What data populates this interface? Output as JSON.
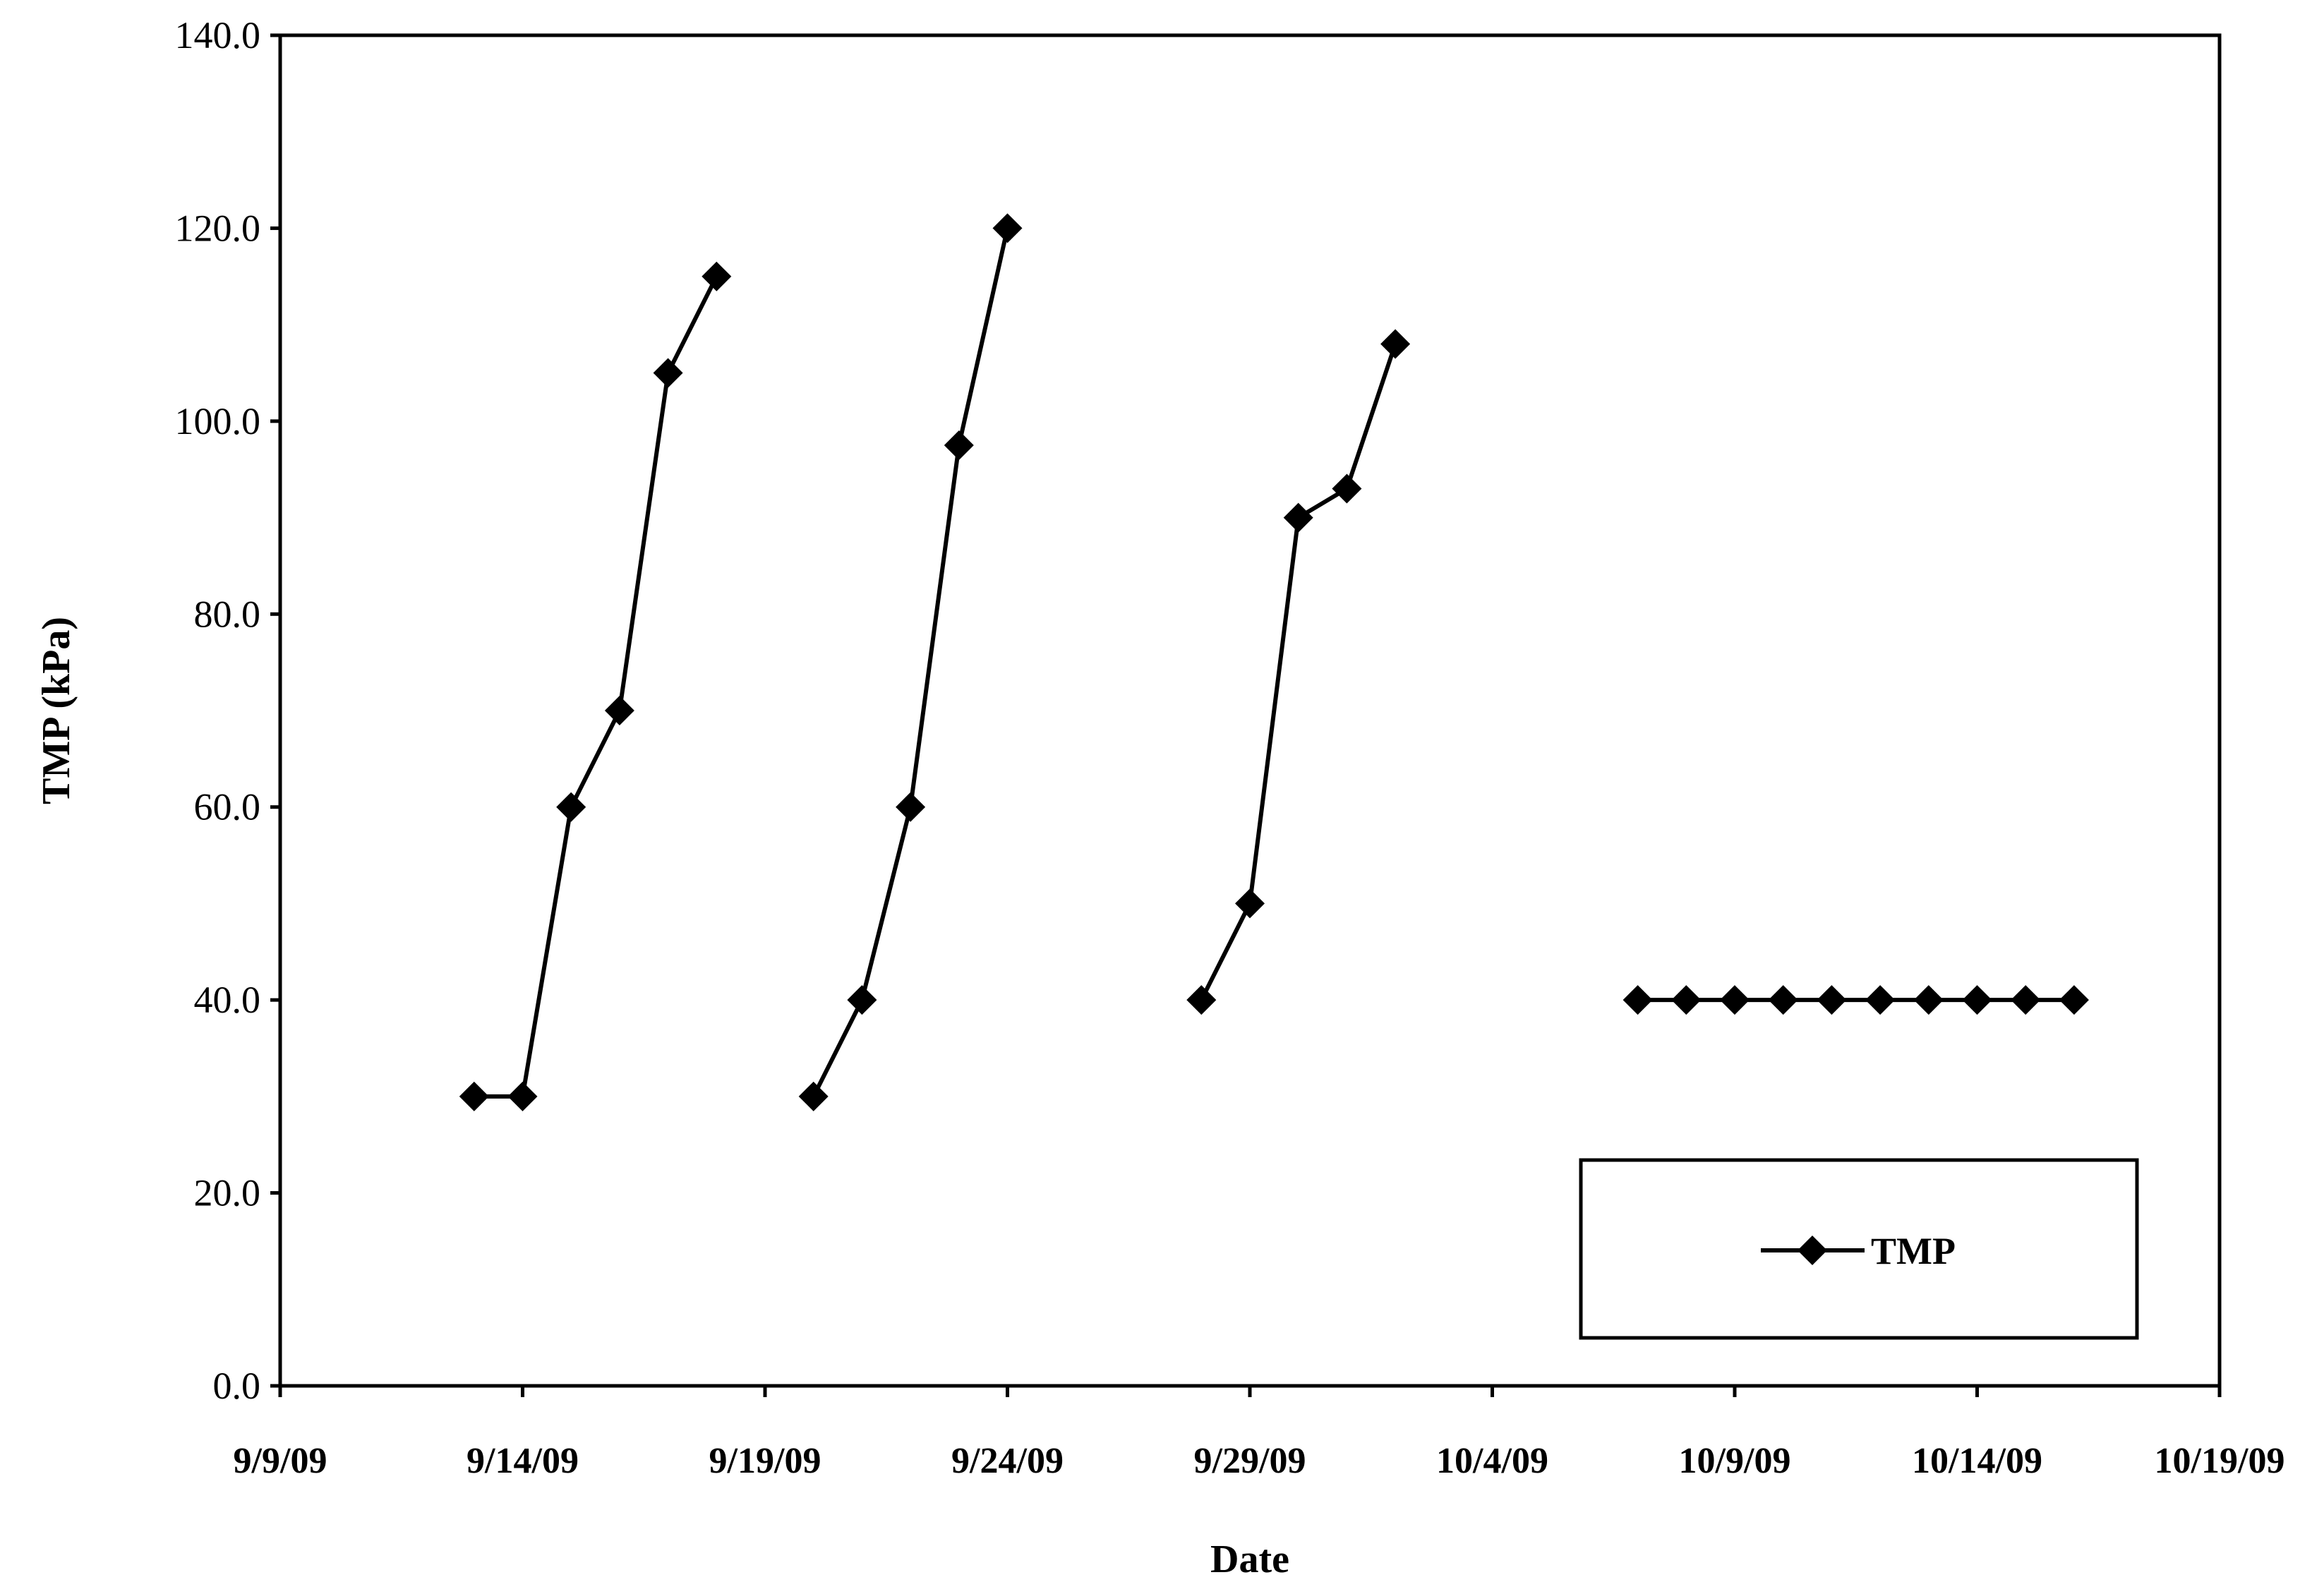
{
  "chart_data": {
    "type": "line",
    "title": "",
    "xlabel": "Date",
    "ylabel": "TMP  (kPa)",
    "ylim": [
      0,
      140
    ],
    "xlim": [
      "9/9/09",
      "10/19/09"
    ],
    "grid": false,
    "legend_position": "bottom-right",
    "y_ticks": [
      "0.0",
      "20.0",
      "40.0",
      "60.0",
      "80.0",
      "100.0",
      "120.0",
      "140.0"
    ],
    "x_ticks": [
      "9/9/09",
      "9/14/09",
      "9/19/09",
      "9/24/09",
      "9/29/09",
      "10/4/09",
      "10/9/09",
      "10/14/09",
      "10/19/09"
    ],
    "series": [
      {
        "name": "TMP",
        "color": "#000000",
        "marker": "diamond",
        "segments": [
          [
            {
              "x": "2009-09-13",
              "y": 30
            },
            {
              "x": "2009-09-14",
              "y": 30
            },
            {
              "x": "2009-09-15",
              "y": 60
            },
            {
              "x": "2009-09-16",
              "y": 70
            },
            {
              "x": "2009-09-17",
              "y": 105
            },
            {
              "x": "2009-09-18",
              "y": 115
            }
          ],
          [
            {
              "x": "2009-09-20",
              "y": 30
            },
            {
              "x": "2009-09-21",
              "y": 40
            },
            {
              "x": "2009-09-22",
              "y": 60
            },
            {
              "x": "2009-09-23",
              "y": 97.5
            },
            {
              "x": "2009-09-24",
              "y": 120
            }
          ],
          [
            {
              "x": "2009-09-28",
              "y": 40
            },
            {
              "x": "2009-09-29",
              "y": 50
            },
            {
              "x": "2009-09-30",
              "y": 90
            },
            {
              "x": "2009-10-01",
              "y": 93
            },
            {
              "x": "2009-10-02",
              "y": 108
            }
          ],
          [
            {
              "x": "2009-10-07",
              "y": 40
            },
            {
              "x": "2009-10-08",
              "y": 40
            },
            {
              "x": "2009-10-09",
              "y": 40
            },
            {
              "x": "2009-10-10",
              "y": 40
            },
            {
              "x": "2009-10-11",
              "y": 40
            },
            {
              "x": "2009-10-12",
              "y": 40
            },
            {
              "x": "2009-10-13",
              "y": 40
            },
            {
              "x": "2009-10-14",
              "y": 40
            },
            {
              "x": "2009-10-15",
              "y": 40
            },
            {
              "x": "2009-10-16",
              "y": 40
            }
          ]
        ]
      }
    ]
  }
}
